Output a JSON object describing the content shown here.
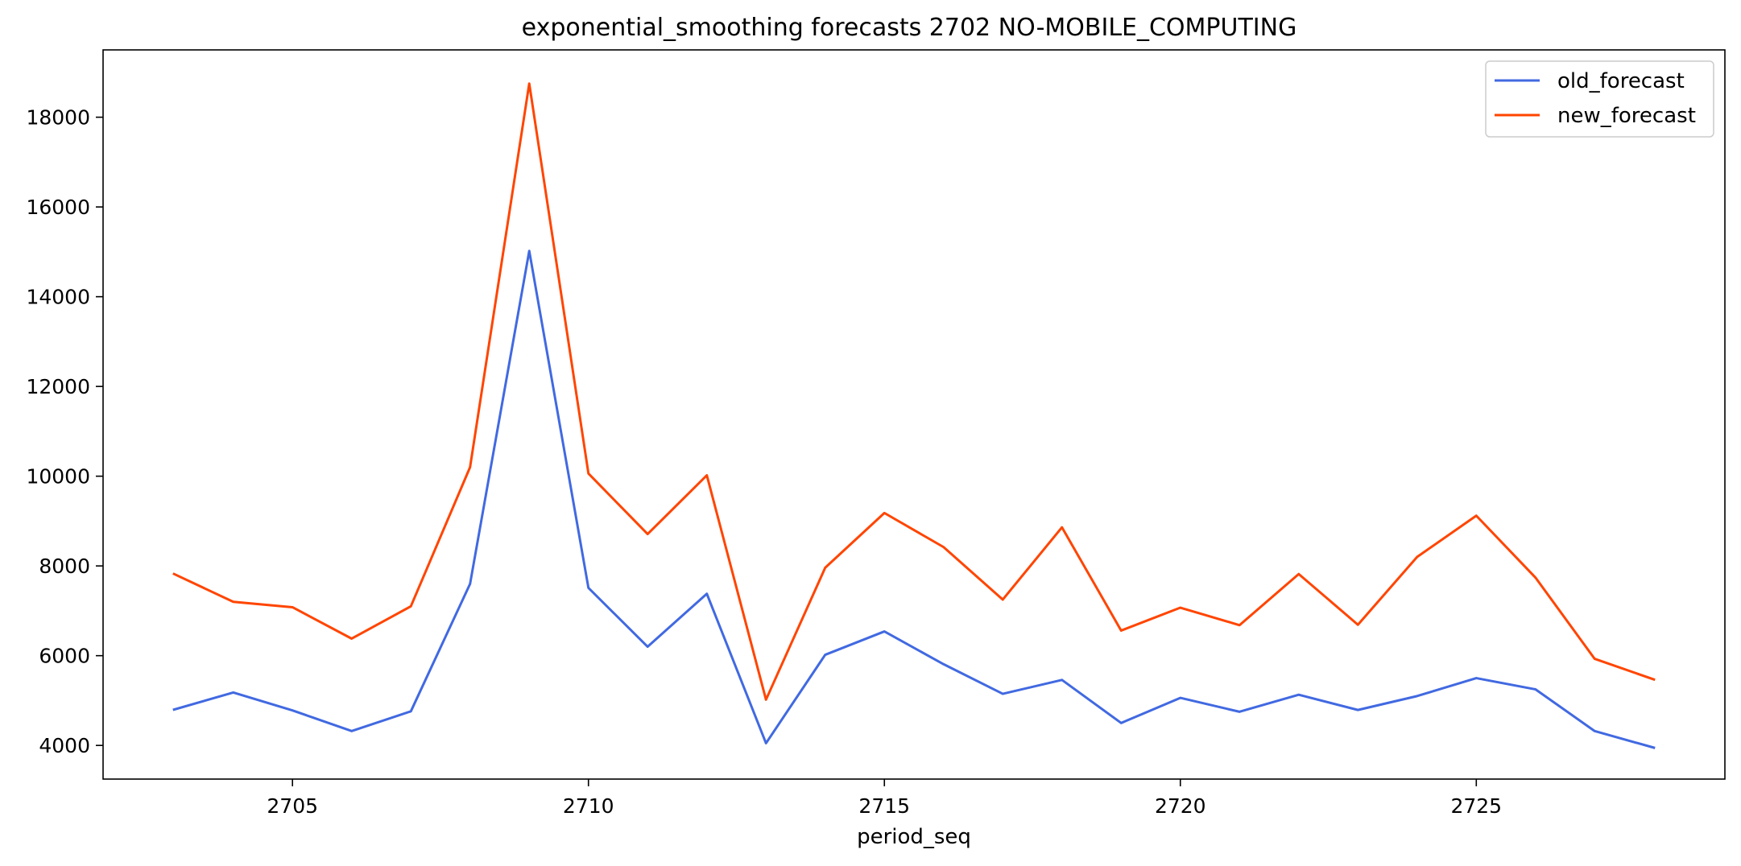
{
  "chart_data": {
    "type": "line",
    "title": "exponential_smoothing forecasts 2702 NO-MOBILE_COMPUTING",
    "xlabel": "period_seq",
    "ylabel": "",
    "xlim": [
      2701.8,
      2729.2
    ],
    "ylim": [
      3250,
      19500
    ],
    "x_ticks": [
      2705,
      2710,
      2715,
      2720,
      2725
    ],
    "y_ticks": [
      4000,
      6000,
      8000,
      10000,
      12000,
      14000,
      16000,
      18000
    ],
    "grid": false,
    "legend_position": "top-right",
    "x": [
      2703,
      2704,
      2705,
      2706,
      2707,
      2708,
      2709,
      2710,
      2711,
      2712,
      2713,
      2714,
      2715,
      2716,
      2717,
      2718,
      2719,
      2720,
      2721,
      2722,
      2723,
      2724,
      2725,
      2726,
      2727,
      2728
    ],
    "series": [
      {
        "name": "old_forecast",
        "color": "#4169E1",
        "values": [
          4800,
          5180,
          4780,
          4320,
          4760,
          7600,
          15020,
          7510,
          6200,
          7380,
          4050,
          6020,
          6540,
          5810,
          5150,
          5460,
          4500,
          5060,
          4750,
          5130,
          4790,
          5100,
          5500,
          5250,
          4320,
          3950
        ]
      },
      {
        "name": "new_forecast",
        "color": "#FF4500",
        "values": [
          7820,
          7200,
          7080,
          6380,
          7100,
          10200,
          18750,
          10060,
          8710,
          10020,
          5020,
          7960,
          9180,
          8420,
          7250,
          8860,
          6560,
          7070,
          6680,
          7820,
          6690,
          8200,
          9120,
          7740,
          5930,
          5470
        ]
      }
    ]
  }
}
